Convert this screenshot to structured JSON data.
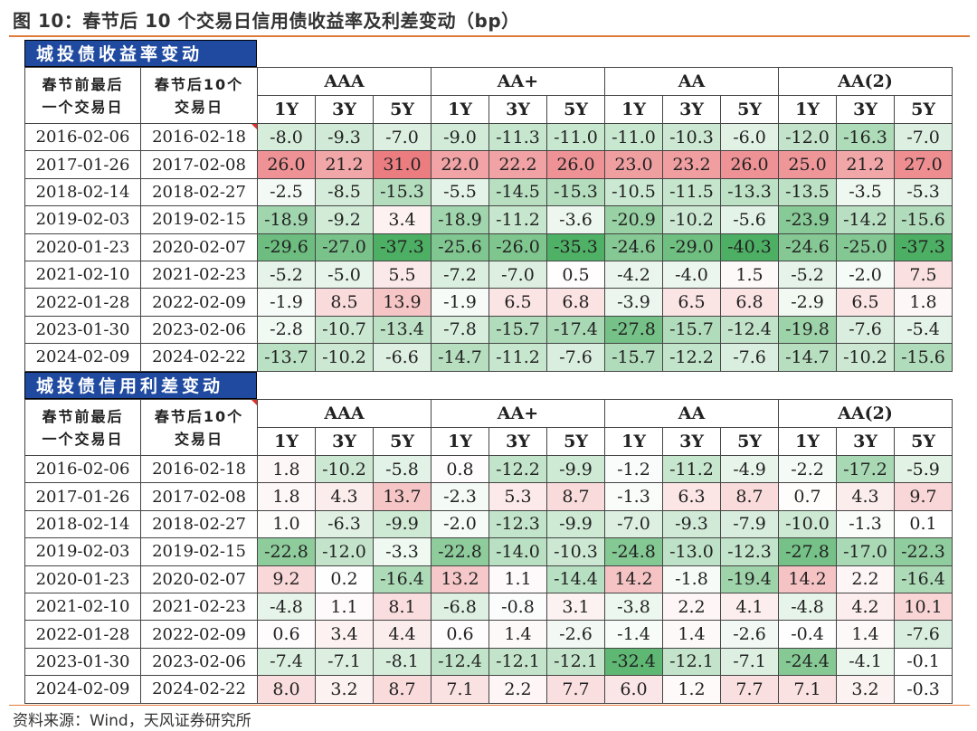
{
  "title": "图 10：春节后 10 个交易日信用债收益率及利差变动（bp）",
  "source": "资料来源：Wind，天风证券研究所",
  "header": {
    "col1": [
      "春节前最后",
      "一个交易日"
    ],
    "col2": [
      "春节后10个",
      "交易日"
    ],
    "groups": [
      "AAA",
      "AA+",
      "AA",
      "AA(2)"
    ],
    "tenors": [
      "1Y",
      "3Y",
      "5Y"
    ]
  },
  "colors": {
    "positive": "#e8686c",
    "negative": "#4caf63",
    "banner": "#1f4aa0",
    "accent": "#e07b39"
  },
  "tables": [
    {
      "title": "城投债收益率变动",
      "rows": [
        {
          "d1": "2016-02-06",
          "d2": "2016-02-18",
          "v": [
            "-8.0",
            "-9.3",
            "-7.0",
            "-9.0",
            "-11.3",
            "-11.0",
            "-11.0",
            "-10.3",
            "-6.0",
            "-12.0",
            "-16.3",
            "-7.0"
          ]
        },
        {
          "d1": "2017-01-26",
          "d2": "2017-02-08",
          "v": [
            "26.0",
            "21.2",
            "31.0",
            "22.0",
            "22.2",
            "26.0",
            "23.0",
            "23.2",
            "26.0",
            "25.0",
            "21.2",
            "27.0"
          ]
        },
        {
          "d1": "2018-02-14",
          "d2": "2018-02-27",
          "v": [
            "-2.5",
            "-8.5",
            "-15.3",
            "-5.5",
            "-14.5",
            "-15.3",
            "-10.5",
            "-11.5",
            "-13.3",
            "-13.5",
            "-3.5",
            "-5.3"
          ]
        },
        {
          "d1": "2019-02-03",
          "d2": "2019-02-15",
          "v": [
            "-18.9",
            "-9.2",
            "3.4",
            "-18.9",
            "-11.2",
            "-3.6",
            "-20.9",
            "-10.2",
            "-5.6",
            "-23.9",
            "-14.2",
            "-15.6"
          ]
        },
        {
          "d1": "2020-01-23",
          "d2": "2020-02-07",
          "v": [
            "-29.6",
            "-27.0",
            "-37.3",
            "-25.6",
            "-26.0",
            "-35.3",
            "-24.6",
            "-29.0",
            "-40.3",
            "-24.6",
            "-25.0",
            "-37.3"
          ]
        },
        {
          "d1": "2021-02-10",
          "d2": "2021-02-23",
          "v": [
            "-5.2",
            "-5.0",
            "5.5",
            "-7.2",
            "-7.0",
            "0.5",
            "-4.2",
            "-4.0",
            "1.5",
            "-5.2",
            "-2.0",
            "7.5"
          ]
        },
        {
          "d1": "2022-01-28",
          "d2": "2022-02-09",
          "v": [
            "-1.9",
            "8.5",
            "13.9",
            "-1.9",
            "6.5",
            "6.8",
            "-3.9",
            "6.5",
            "6.8",
            "-2.9",
            "6.5",
            "1.8"
          ]
        },
        {
          "d1": "2023-01-30",
          "d2": "2023-02-06",
          "v": [
            "-2.8",
            "-10.7",
            "-13.4",
            "-7.8",
            "-15.7",
            "-17.4",
            "-27.8",
            "-15.7",
            "-12.4",
            "-19.8",
            "-7.6",
            "-5.4"
          ]
        },
        {
          "d1": "2024-02-09",
          "d2": "2024-02-22",
          "v": [
            "-13.7",
            "-10.2",
            "-6.6",
            "-14.7",
            "-11.2",
            "-7.6",
            "-15.7",
            "-12.2",
            "-7.6",
            "-14.7",
            "-10.2",
            "-15.6"
          ]
        }
      ]
    },
    {
      "title": "城投债信用利差变动",
      "rows": [
        {
          "d1": "2016-02-06",
          "d2": "2016-02-18",
          "v": [
            "1.8",
            "-10.2",
            "-5.8",
            "0.8",
            "-12.2",
            "-9.9",
            "-1.2",
            "-11.2",
            "-4.9",
            "-2.2",
            "-17.2",
            "-5.9"
          ]
        },
        {
          "d1": "2017-01-26",
          "d2": "2017-02-08",
          "v": [
            "1.8",
            "4.3",
            "13.7",
            "-2.3",
            "5.3",
            "8.7",
            "-1.3",
            "6.3",
            "8.7",
            "0.7",
            "4.3",
            "9.7"
          ]
        },
        {
          "d1": "2018-02-14",
          "d2": "2018-02-27",
          "v": [
            "1.0",
            "-6.3",
            "-9.9",
            "-2.0",
            "-12.3",
            "-9.9",
            "-7.0",
            "-9.3",
            "-7.9",
            "-10.0",
            "-1.3",
            "0.1"
          ]
        },
        {
          "d1": "2019-02-03",
          "d2": "2019-02-15",
          "v": [
            "-22.8",
            "-12.0",
            "-3.3",
            "-22.8",
            "-14.0",
            "-10.3",
            "-24.8",
            "-13.0",
            "-12.3",
            "-27.8",
            "-17.0",
            "-22.3"
          ]
        },
        {
          "d1": "2020-01-23",
          "d2": "2020-02-07",
          "v": [
            "9.2",
            "0.2",
            "-16.4",
            "13.2",
            "1.1",
            "-14.4",
            "14.2",
            "-1.8",
            "-19.4",
            "14.2",
            "2.2",
            "-16.4"
          ]
        },
        {
          "d1": "2021-02-10",
          "d2": "2021-02-23",
          "v": [
            "-4.8",
            "1.1",
            "8.1",
            "-6.8",
            "-0.8",
            "3.1",
            "-3.8",
            "2.2",
            "4.1",
            "-4.8",
            "4.2",
            "10.1"
          ]
        },
        {
          "d1": "2022-01-28",
          "d2": "2022-02-09",
          "v": [
            "0.6",
            "3.4",
            "4.4",
            "0.6",
            "1.4",
            "-2.6",
            "-1.4",
            "1.4",
            "-2.6",
            "-0.4",
            "1.4",
            "-7.6"
          ]
        },
        {
          "d1": "2023-01-30",
          "d2": "2023-02-06",
          "v": [
            "-7.4",
            "-7.1",
            "-8.1",
            "-12.4",
            "-12.1",
            "-12.1",
            "-32.4",
            "-12.1",
            "-7.1",
            "-24.4",
            "-4.1",
            "-0.1"
          ]
        },
        {
          "d1": "2024-02-09",
          "d2": "2024-02-22",
          "v": [
            "8.0",
            "3.2",
            "8.7",
            "7.1",
            "2.2",
            "7.7",
            "6.0",
            "1.2",
            "7.7",
            "7.1",
            "3.2",
            "-0.3"
          ]
        }
      ]
    }
  ]
}
